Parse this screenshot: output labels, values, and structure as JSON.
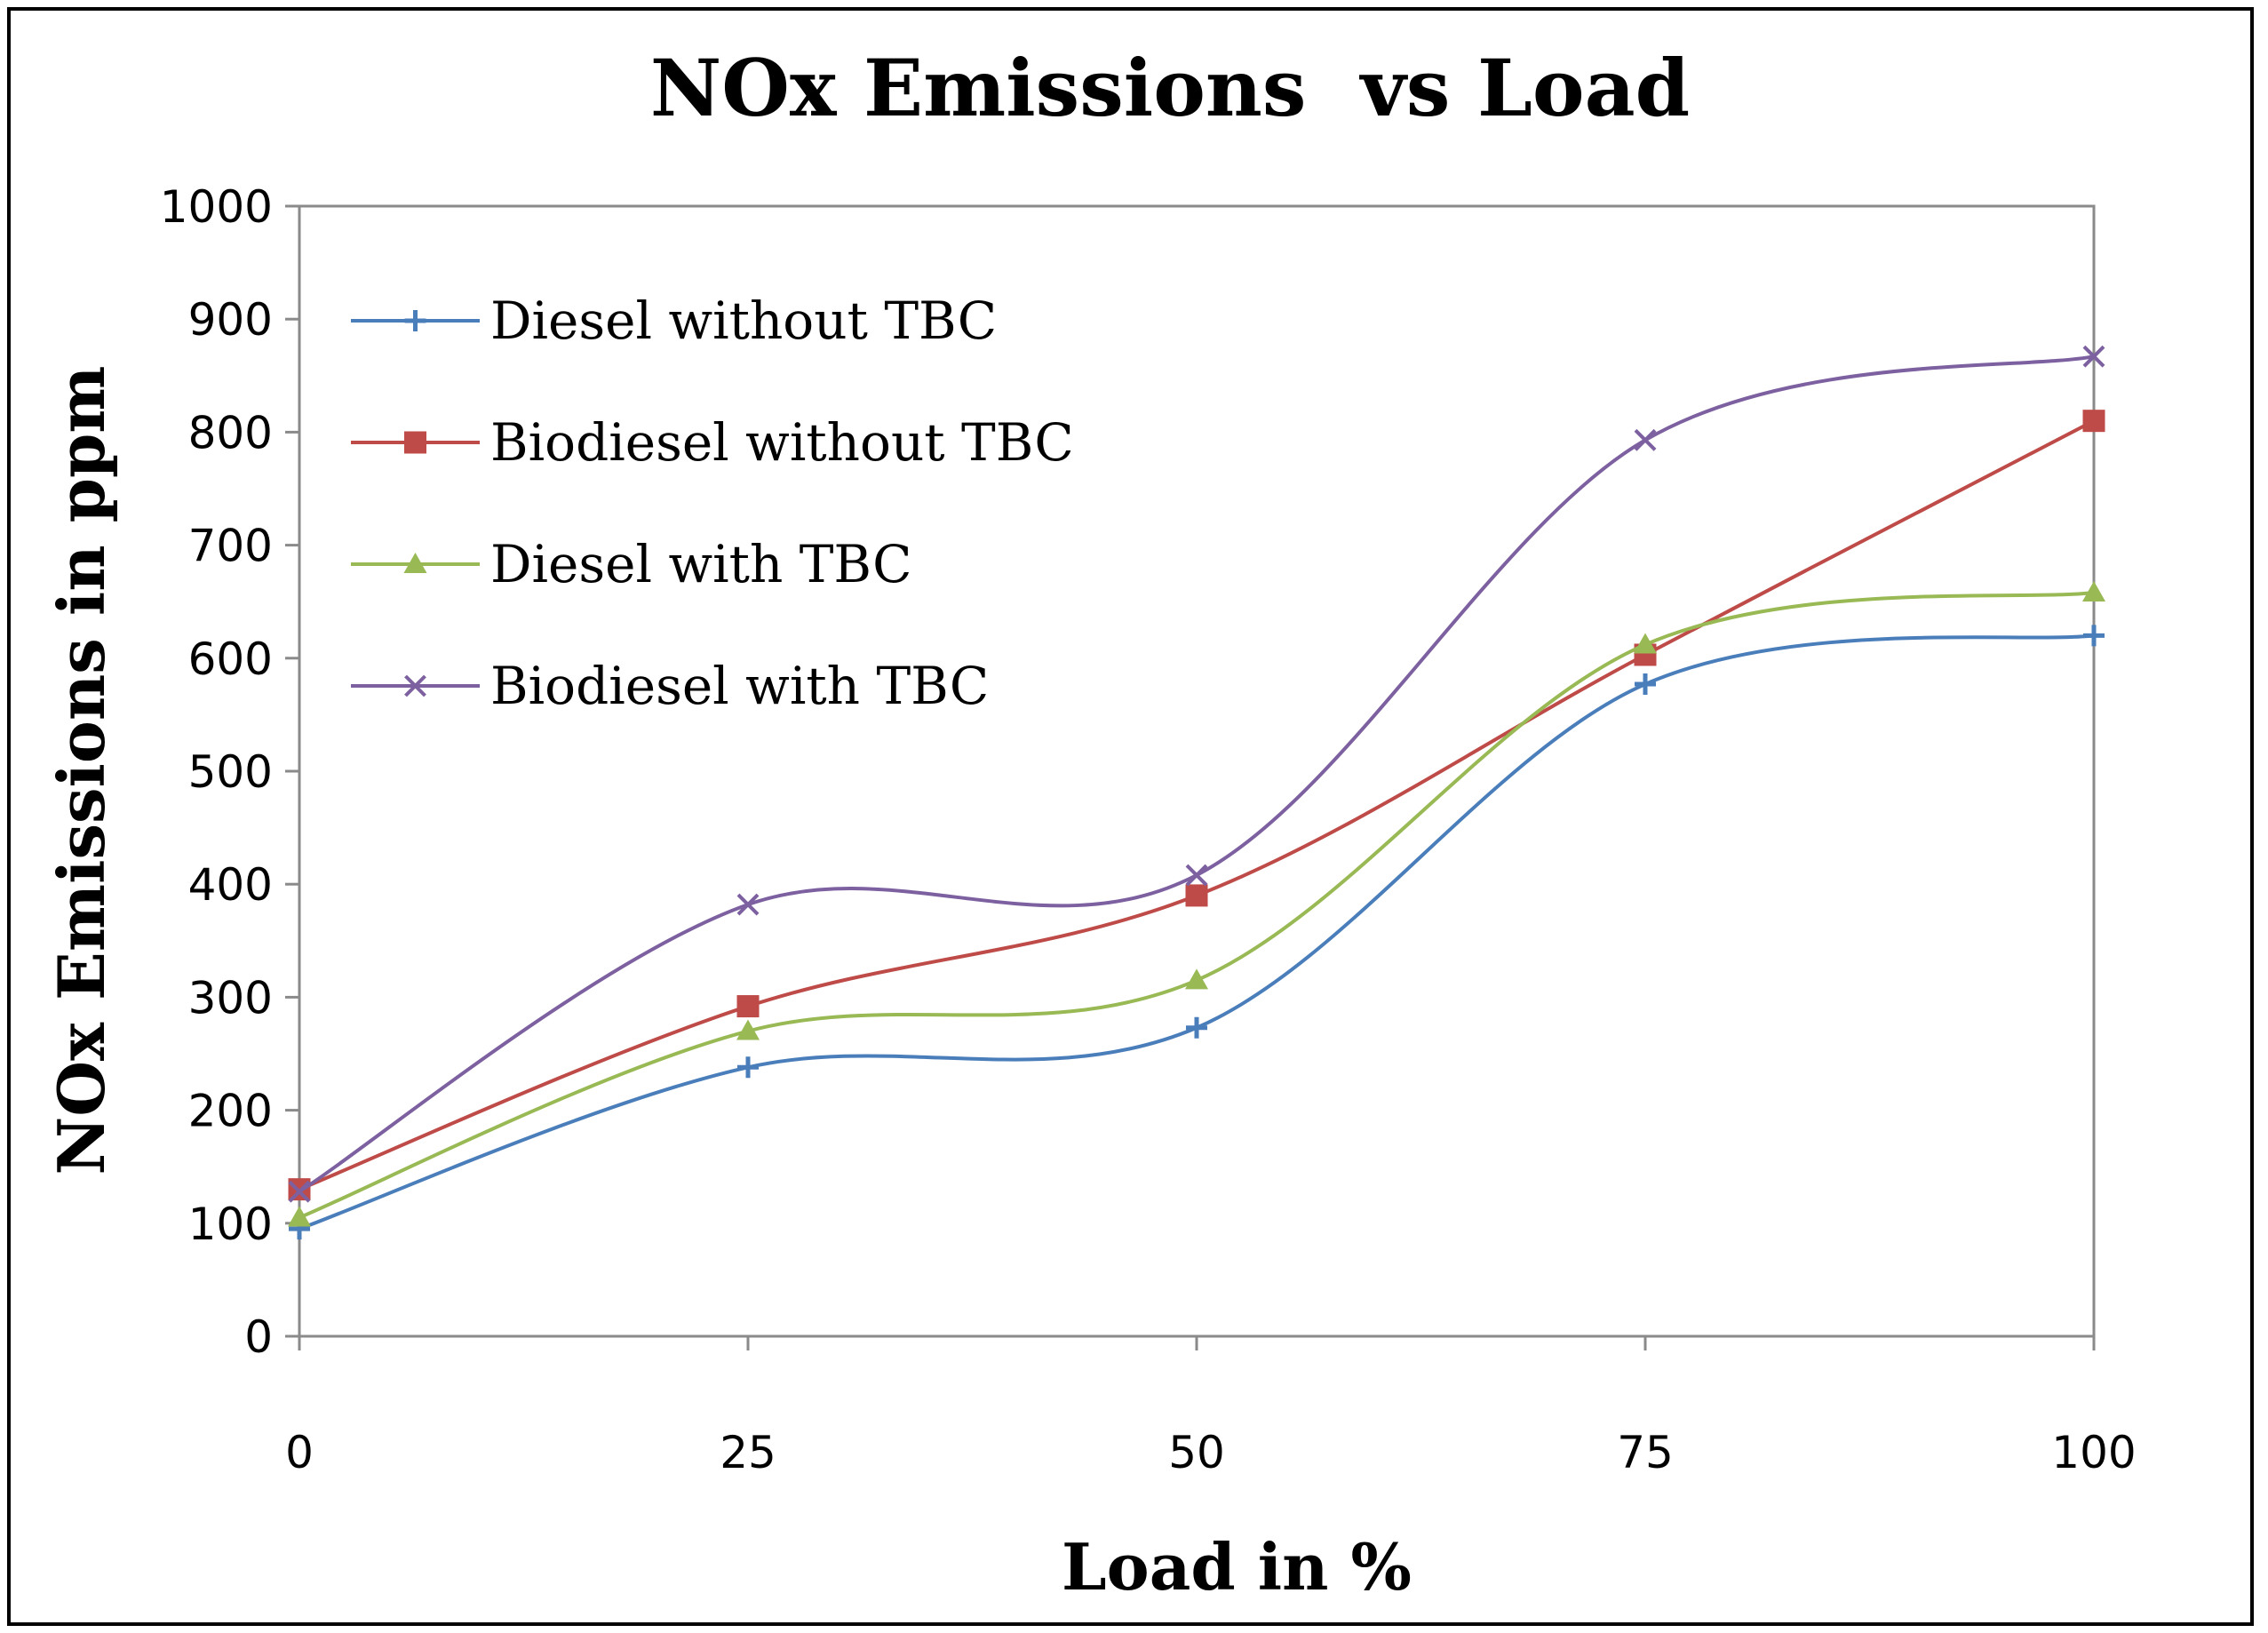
{
  "chart_data": {
    "type": "line",
    "title": "NOx Emissions  vs Load",
    "xlabel": "Load in %",
    "ylabel": "NOx Emissions in ppm",
    "x": [
      0,
      25,
      50,
      75,
      100
    ],
    "xlim": [
      0,
      100
    ],
    "ylim": [
      0,
      1000
    ],
    "yticks": [
      0,
      100,
      200,
      300,
      400,
      500,
      600,
      700,
      800,
      900,
      1000
    ],
    "xticks": [
      0,
      25,
      50,
      75,
      100
    ],
    "grid": false,
    "smooth": true,
    "legend_position": "top-left",
    "series": [
      {
        "name": "Diesel without TBC",
        "color": "#4a7ebb",
        "marker": "plus",
        "values": [
          95,
          238,
          273,
          577,
          620
        ]
      },
      {
        "name": "Biodiesel without TBC",
        "color": "#be4b48",
        "marker": "square",
        "values": [
          130,
          292,
          390,
          603,
          810
        ]
      },
      {
        "name": "Diesel with TBC",
        "color": "#98b954",
        "marker": "triangle",
        "values": [
          105,
          270,
          315,
          612,
          658
        ]
      },
      {
        "name": "Biodiesel with TBC",
        "color": "#7d60a0",
        "marker": "x",
        "values": [
          128,
          382,
          408,
          793,
          867
        ]
      }
    ]
  }
}
